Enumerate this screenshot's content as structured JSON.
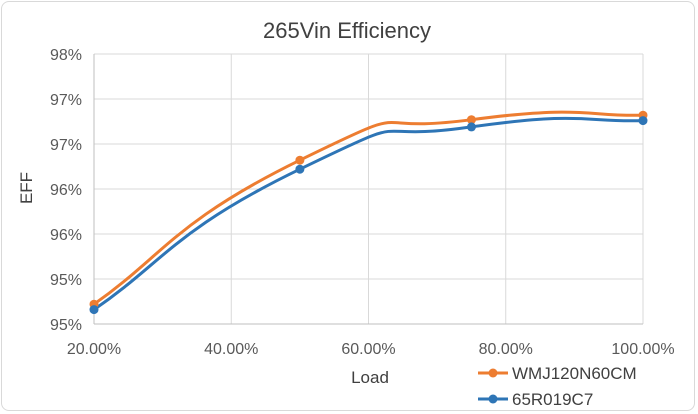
{
  "chart_data": {
    "type": "line",
    "title": "265Vin Efficiency",
    "xlabel": "Load",
    "ylabel": "EFF",
    "x": [
      0.2,
      0.5,
      0.75,
      1.0
    ],
    "xlim": [
      0.2,
      1.0
    ],
    "ylim": [
      0.95,
      0.98
    ],
    "x_tick_labels": [
      "20.00%",
      "40.00%",
      "60.00%",
      "80.00%",
      "100.00%"
    ],
    "y_tick_labels": [
      "98%",
      "97%",
      "97%",
      "96%",
      "96%",
      "95%",
      "95%"
    ],
    "grid": true,
    "legend_position": "bottom-right",
    "series": [
      {
        "name": "WMJ120N60CM",
        "color": "#ED7D31",
        "values": [
          0.9522,
          0.9682,
          0.9727,
          0.9732
        ]
      },
      {
        "name": "65R019C7",
        "color": "#2E75B6",
        "values": [
          0.9516,
          0.9672,
          0.9719,
          0.9726
        ]
      }
    ]
  }
}
